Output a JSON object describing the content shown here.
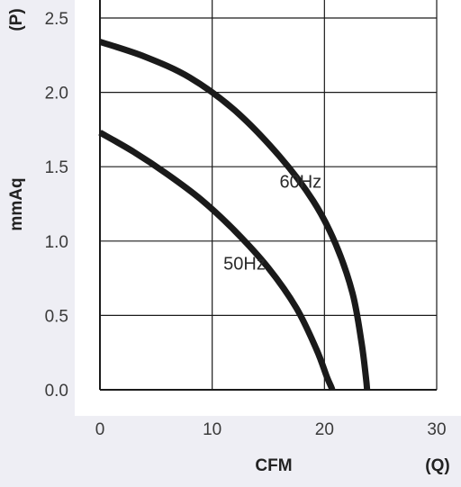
{
  "chart_data": {
    "type": "line",
    "title": "",
    "xlabel": "CFM",
    "xlabel_unit": "(Q)",
    "ylabel": "mmAq",
    "ylabel_unit": "(P)",
    "xlim": [
      0,
      30
    ],
    "ylim": [
      0,
      2.5
    ],
    "x_ticks": [
      "0",
      "10",
      "20",
      "30"
    ],
    "y_ticks": [
      "0.0",
      "0.5",
      "1.0",
      "1.5",
      "2.0",
      "2.5"
    ],
    "grid": true,
    "series": [
      {
        "name": "60Hz",
        "x": [
          0,
          4,
          8,
          12,
          16,
          19,
          21,
          22.5,
          23.3,
          23.7,
          23.8
        ],
        "y": [
          2.34,
          2.24,
          2.1,
          1.88,
          1.57,
          1.27,
          0.98,
          0.65,
          0.32,
          0.08,
          0
        ]
      },
      {
        "name": "50Hz",
        "x": [
          0,
          3,
          6,
          9,
          12,
          15,
          17.5,
          19.3,
          20.2,
          20.6,
          20.7
        ],
        "y": [
          1.73,
          1.6,
          1.45,
          1.28,
          1.07,
          0.82,
          0.55,
          0.27,
          0.09,
          0.02,
          0
        ]
      }
    ],
    "annotations": [
      {
        "text": "60Hz",
        "x": 16,
        "y": 1.4
      },
      {
        "text": "50Hz",
        "x": 11,
        "y": 0.85
      }
    ]
  }
}
